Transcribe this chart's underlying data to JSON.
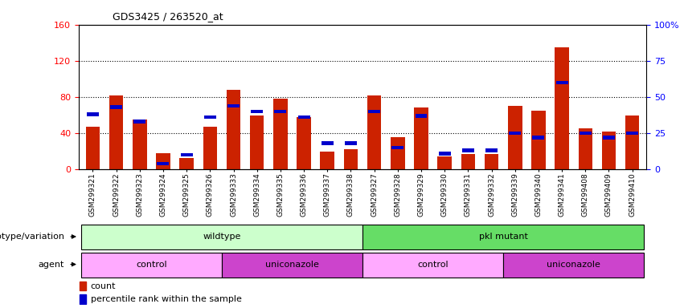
{
  "title": "GDS3425 / 263520_at",
  "samples": [
    "GSM299321",
    "GSM299322",
    "GSM299323",
    "GSM299324",
    "GSM299325",
    "GSM299326",
    "GSM299333",
    "GSM299334",
    "GSM299335",
    "GSM299336",
    "GSM299337",
    "GSM299338",
    "GSM299327",
    "GSM299328",
    "GSM299329",
    "GSM299330",
    "GSM299331",
    "GSM299332",
    "GSM299339",
    "GSM299340",
    "GSM299341",
    "GSM299408",
    "GSM299409",
    "GSM299410"
  ],
  "count_values": [
    47,
    82,
    55,
    18,
    13,
    47,
    88,
    60,
    78,
    58,
    20,
    22,
    82,
    36,
    68,
    14,
    17,
    17,
    70,
    65,
    135,
    45,
    42,
    60
  ],
  "percentile_values": [
    38,
    43,
    33,
    4,
    10,
    36,
    44,
    40,
    40,
    36,
    18,
    18,
    40,
    15,
    37,
    11,
    13,
    13,
    25,
    22,
    60,
    25,
    22,
    25
  ],
  "bar_color": "#cc2200",
  "percentile_color": "#0000cc",
  "ylim_left": [
    0,
    160
  ],
  "ylim_right": [
    0,
    100
  ],
  "yticks_left": [
    0,
    40,
    80,
    120,
    160
  ],
  "ytick_labels_left": [
    "0",
    "40",
    "80",
    "120",
    "160"
  ],
  "yticks_right": [
    0,
    25,
    50,
    75,
    100
  ],
  "ytick_labels_right": [
    "0",
    "25",
    "50",
    "75",
    "100%"
  ],
  "groups": [
    {
      "label": "wildtype",
      "start": 0,
      "end": 11,
      "color": "#ccffcc"
    },
    {
      "label": "pkl mutant",
      "start": 12,
      "end": 23,
      "color": "#66dd66"
    }
  ],
  "agents": [
    {
      "label": "control",
      "start": 0,
      "end": 5,
      "color": "#ffaaff"
    },
    {
      "label": "uniconazole",
      "start": 6,
      "end": 11,
      "color": "#cc44cc"
    },
    {
      "label": "control",
      "start": 12,
      "end": 17,
      "color": "#ffaaff"
    },
    {
      "label": "uniconazole",
      "start": 18,
      "end": 23,
      "color": "#cc44cc"
    }
  ],
  "bar_width": 0.6,
  "legend_count_label": "count",
  "legend_percentile_label": "percentile rank within the sample",
  "genotype_label": "genotype/variation",
  "agent_label": "agent"
}
